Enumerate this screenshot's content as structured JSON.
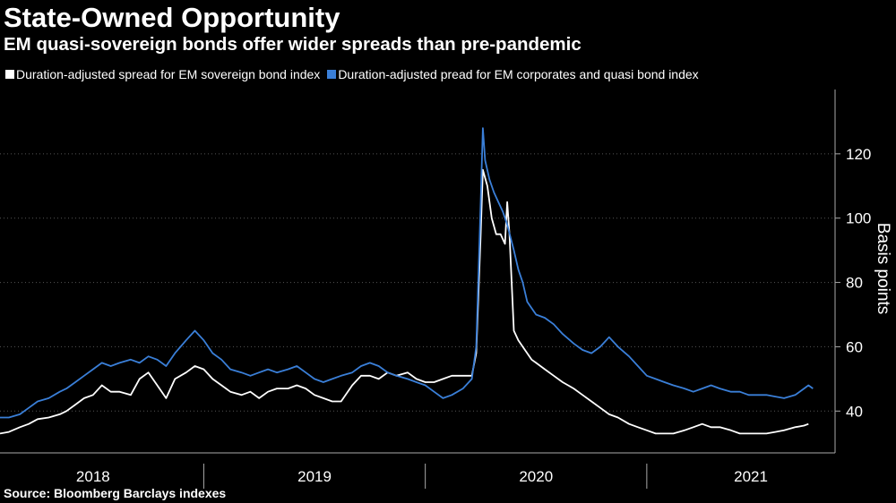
{
  "title": "State-Owned Opportunity",
  "subtitle": "EM quasi-sovereign bonds offer wider spreads than pre-pandemic",
  "source": "Source: Bloomberg Barclays indexes",
  "colors": {
    "sovereign": "#ffffff",
    "quasi": "#3a7fd8",
    "background": "#000000",
    "grid": "#555555"
  },
  "chart_data": {
    "type": "line",
    "title": "State-Owned Opportunity",
    "subtitle": "EM quasi-sovereign bonds offer wider spreads than pre-pandemic",
    "ylabel": "Basis points",
    "xlabel": "",
    "ylim": [
      27,
      140
    ],
    "y_ticks": [
      40,
      60,
      80,
      100,
      120
    ],
    "x_range": [
      2017.58,
      2021.35
    ],
    "x_tick_labels": [
      {
        "label": "2018",
        "center": 2018.0
      },
      {
        "label": "2019",
        "center": 2019.0
      },
      {
        "label": "2020",
        "center": 2020.0
      },
      {
        "label": "2021",
        "center": 2020.97
      }
    ],
    "x_tick_marks": [
      2018.5,
      2019.5,
      2020.5
    ],
    "grid": true,
    "legend_position": "top-left",
    "series": [
      {
        "name": "Duration-adjusted spread for EM sovereign bond index",
        "color": "#ffffff",
        "points": [
          [
            2017.58,
            33
          ],
          [
            2017.62,
            33.5
          ],
          [
            2017.67,
            35
          ],
          [
            2017.71,
            36
          ],
          [
            2017.75,
            37.5
          ],
          [
            2017.8,
            38
          ],
          [
            2017.85,
            39
          ],
          [
            2017.88,
            40
          ],
          [
            2017.92,
            42
          ],
          [
            2017.96,
            44
          ],
          [
            2018.0,
            45
          ],
          [
            2018.04,
            48
          ],
          [
            2018.08,
            46
          ],
          [
            2018.12,
            46
          ],
          [
            2018.17,
            45
          ],
          [
            2018.21,
            50
          ],
          [
            2018.25,
            52
          ],
          [
            2018.29,
            48
          ],
          [
            2018.33,
            44
          ],
          [
            2018.37,
            50
          ],
          [
            2018.42,
            52
          ],
          [
            2018.46,
            54
          ],
          [
            2018.5,
            53
          ],
          [
            2018.54,
            50
          ],
          [
            2018.58,
            48
          ],
          [
            2018.62,
            46
          ],
          [
            2018.67,
            45
          ],
          [
            2018.71,
            46
          ],
          [
            2018.75,
            44
          ],
          [
            2018.79,
            46
          ],
          [
            2018.83,
            47
          ],
          [
            2018.88,
            47
          ],
          [
            2018.92,
            48
          ],
          [
            2018.96,
            47
          ],
          [
            2019.0,
            45
          ],
          [
            2019.04,
            44
          ],
          [
            2019.08,
            43
          ],
          [
            2019.12,
            43
          ],
          [
            2019.17,
            48
          ],
          [
            2019.21,
            51
          ],
          [
            2019.25,
            51
          ],
          [
            2019.29,
            50
          ],
          [
            2019.33,
            52
          ],
          [
            2019.37,
            51
          ],
          [
            2019.42,
            52
          ],
          [
            2019.46,
            50
          ],
          [
            2019.5,
            49
          ],
          [
            2019.54,
            49
          ],
          [
            2019.58,
            50
          ],
          [
            2019.62,
            51
          ],
          [
            2019.67,
            51
          ],
          [
            2019.71,
            51
          ],
          [
            2019.73,
            58
          ],
          [
            2019.75,
            95
          ],
          [
            2019.76,
            115
          ],
          [
            2019.78,
            110
          ],
          [
            2019.8,
            100
          ],
          [
            2019.82,
            95
          ],
          [
            2019.84,
            95
          ],
          [
            2019.86,
            92
          ],
          [
            2019.87,
            105
          ],
          [
            2019.88,
            95
          ],
          [
            2019.9,
            65
          ],
          [
            2019.92,
            62
          ],
          [
            2019.94,
            60
          ],
          [
            2019.96,
            58
          ],
          [
            2019.98,
            56
          ],
          [
            2020.0,
            55
          ],
          [
            2020.04,
            53
          ],
          [
            2020.08,
            51
          ],
          [
            2020.12,
            49
          ],
          [
            2020.17,
            47
          ],
          [
            2020.21,
            45
          ],
          [
            2020.25,
            43
          ],
          [
            2020.29,
            41
          ],
          [
            2020.33,
            39
          ],
          [
            2020.37,
            38
          ],
          [
            2020.42,
            36
          ],
          [
            2020.46,
            35
          ],
          [
            2020.5,
            34
          ],
          [
            2020.54,
            33
          ],
          [
            2020.58,
            33
          ],
          [
            2020.62,
            33
          ],
          [
            2020.67,
            34
          ],
          [
            2020.71,
            35
          ],
          [
            2020.75,
            36
          ],
          [
            2020.79,
            35
          ],
          [
            2020.83,
            35
          ],
          [
            2020.88,
            34
          ],
          [
            2020.92,
            33
          ],
          [
            2020.96,
            33
          ],
          [
            2021.0,
            33
          ],
          [
            2021.04,
            33
          ],
          [
            2021.08,
            33.5
          ],
          [
            2021.12,
            34
          ],
          [
            2021.17,
            35
          ],
          [
            2021.21,
            35.5
          ],
          [
            2021.23,
            36
          ]
        ]
      },
      {
        "name": "Duration-adjusted pread for EM corporates and quasi bond index",
        "color": "#3a7fd8",
        "points": [
          [
            2017.58,
            38
          ],
          [
            2017.62,
            38
          ],
          [
            2017.67,
            39
          ],
          [
            2017.71,
            41
          ],
          [
            2017.75,
            43
          ],
          [
            2017.8,
            44
          ],
          [
            2017.85,
            46
          ],
          [
            2017.88,
            47
          ],
          [
            2017.92,
            49
          ],
          [
            2017.96,
            51
          ],
          [
            2018.0,
            53
          ],
          [
            2018.04,
            55
          ],
          [
            2018.08,
            54
          ],
          [
            2018.12,
            55
          ],
          [
            2018.17,
            56
          ],
          [
            2018.21,
            55
          ],
          [
            2018.25,
            57
          ],
          [
            2018.29,
            56
          ],
          [
            2018.33,
            54
          ],
          [
            2018.37,
            58
          ],
          [
            2018.42,
            62
          ],
          [
            2018.46,
            65
          ],
          [
            2018.5,
            62
          ],
          [
            2018.54,
            58
          ],
          [
            2018.58,
            56
          ],
          [
            2018.62,
            53
          ],
          [
            2018.67,
            52
          ],
          [
            2018.71,
            51
          ],
          [
            2018.75,
            52
          ],
          [
            2018.79,
            53
          ],
          [
            2018.83,
            52
          ],
          [
            2018.88,
            53
          ],
          [
            2018.92,
            54
          ],
          [
            2018.96,
            52
          ],
          [
            2019.0,
            50
          ],
          [
            2019.04,
            49
          ],
          [
            2019.08,
            50
          ],
          [
            2019.12,
            51
          ],
          [
            2019.17,
            52
          ],
          [
            2019.21,
            54
          ],
          [
            2019.25,
            55
          ],
          [
            2019.29,
            54
          ],
          [
            2019.33,
            52
          ],
          [
            2019.37,
            51
          ],
          [
            2019.42,
            50
          ],
          [
            2019.46,
            49
          ],
          [
            2019.5,
            48
          ],
          [
            2019.54,
            46
          ],
          [
            2019.58,
            44
          ],
          [
            2019.62,
            45
          ],
          [
            2019.67,
            47
          ],
          [
            2019.71,
            50
          ],
          [
            2019.73,
            60
          ],
          [
            2019.75,
            105
          ],
          [
            2019.76,
            128
          ],
          [
            2019.77,
            118
          ],
          [
            2019.79,
            112
          ],
          [
            2019.81,
            108
          ],
          [
            2019.83,
            105
          ],
          [
            2019.85,
            102
          ],
          [
            2019.87,
            98
          ],
          [
            2019.9,
            90
          ],
          [
            2019.92,
            84
          ],
          [
            2019.94,
            80
          ],
          [
            2019.96,
            74
          ],
          [
            2019.98,
            72
          ],
          [
            2020.0,
            70
          ],
          [
            2020.04,
            69
          ],
          [
            2020.08,
            67
          ],
          [
            2020.12,
            64
          ],
          [
            2020.17,
            61
          ],
          [
            2020.21,
            59
          ],
          [
            2020.25,
            58
          ],
          [
            2020.29,
            60
          ],
          [
            2020.33,
            63
          ],
          [
            2020.37,
            60
          ],
          [
            2020.42,
            57
          ],
          [
            2020.46,
            54
          ],
          [
            2020.5,
            51
          ],
          [
            2020.54,
            50
          ],
          [
            2020.58,
            49
          ],
          [
            2020.62,
            48
          ],
          [
            2020.67,
            47
          ],
          [
            2020.71,
            46
          ],
          [
            2020.75,
            47
          ],
          [
            2020.79,
            48
          ],
          [
            2020.83,
            47
          ],
          [
            2020.88,
            46
          ],
          [
            2020.92,
            46
          ],
          [
            2020.96,
            45
          ],
          [
            2021.0,
            45
          ],
          [
            2021.04,
            45
          ],
          [
            2021.08,
            44.5
          ],
          [
            2021.12,
            44
          ],
          [
            2021.17,
            45
          ],
          [
            2021.21,
            47
          ],
          [
            2021.23,
            48
          ],
          [
            2021.25,
            47
          ]
        ]
      }
    ]
  }
}
